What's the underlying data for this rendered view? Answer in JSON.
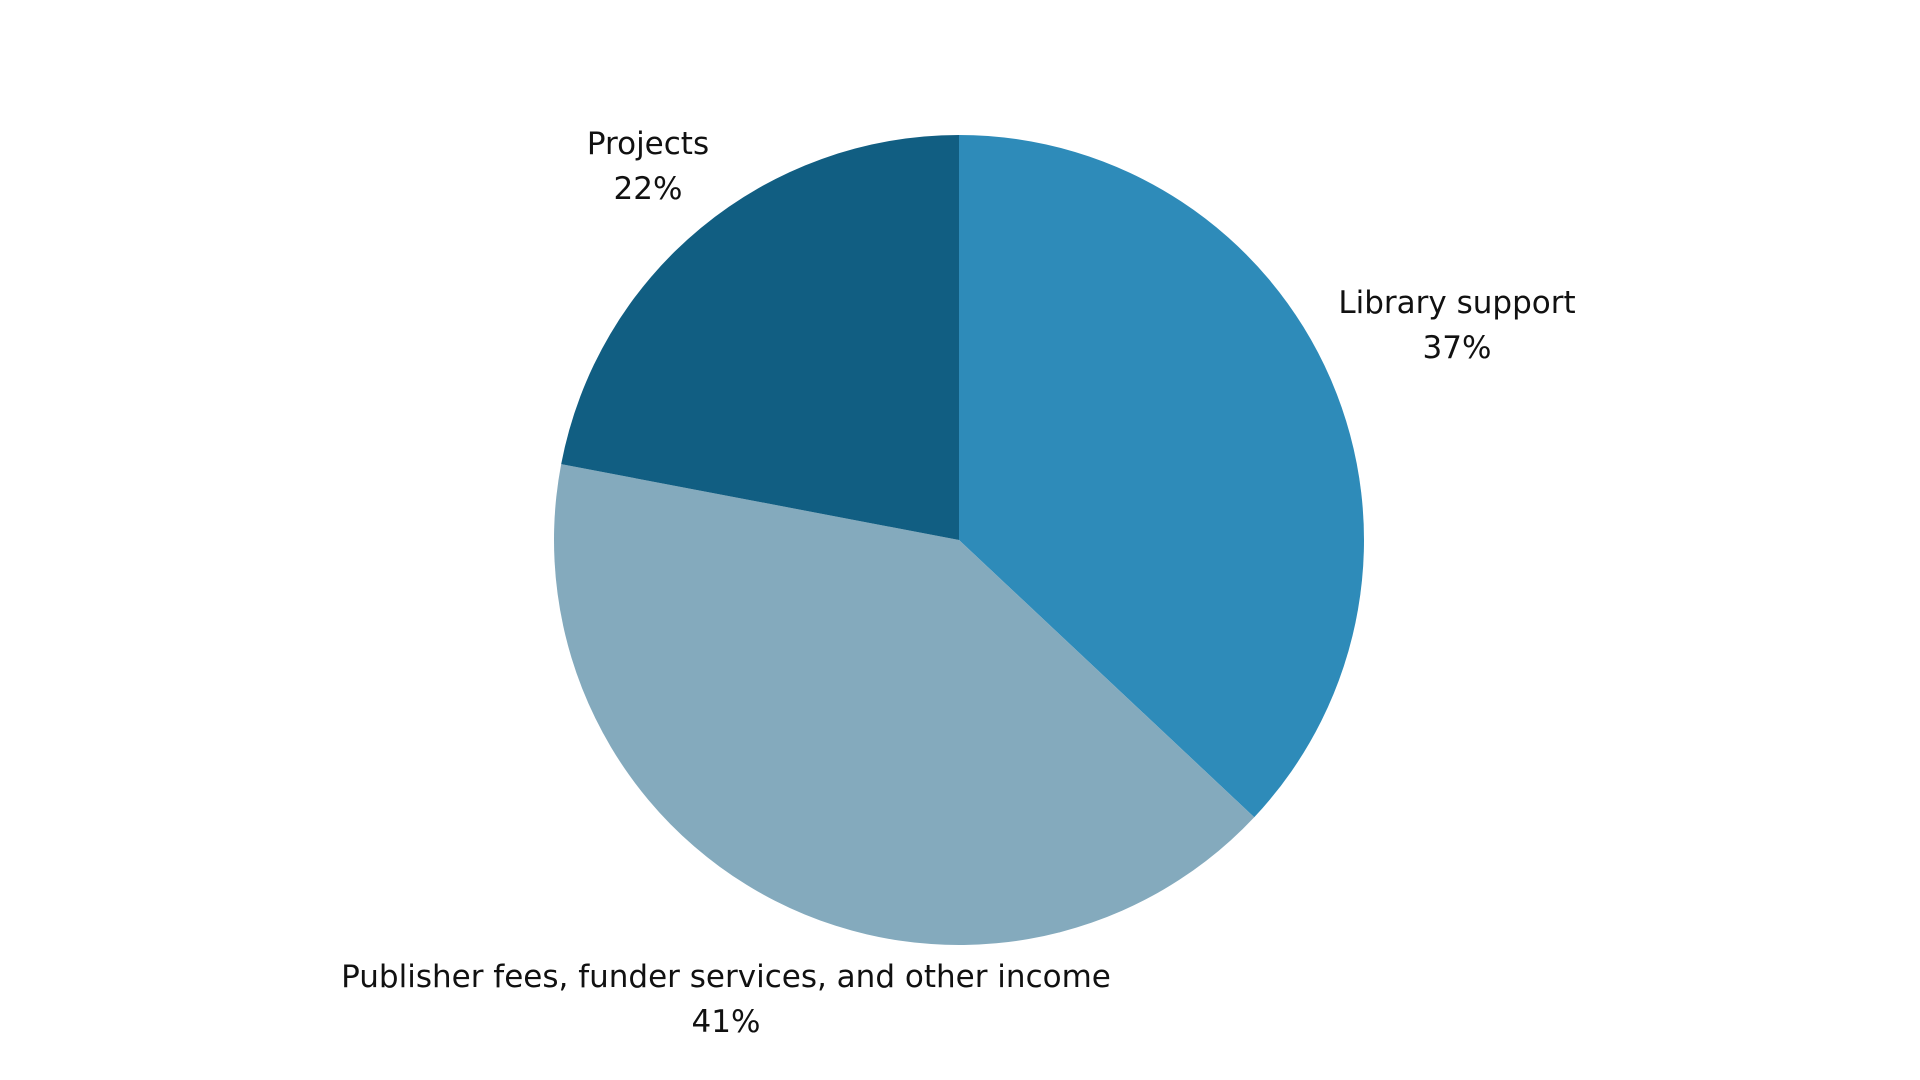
{
  "chart_data": {
    "type": "pie",
    "title": "",
    "start_angle": "top",
    "direction": "clockwise",
    "slices": [
      {
        "label": "Library support",
        "value": 37,
        "value_label": "37%",
        "color": "#2E8BB9"
      },
      {
        "label": "Publisher fees, funder services, and other income",
        "value": 41,
        "value_label": "41%",
        "color": "#84AABD"
      },
      {
        "label": "Projects",
        "value": 22,
        "value_label": "22%",
        "color": "#115E82"
      }
    ],
    "legend": "none",
    "labels_placement": "outside"
  }
}
